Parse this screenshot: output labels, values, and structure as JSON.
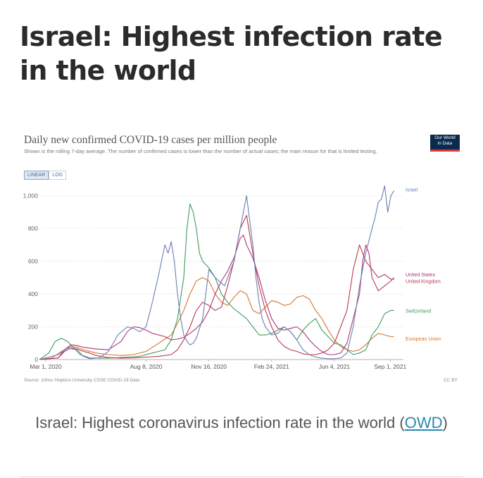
{
  "headline": "Israel: Highest infection rate in the world",
  "caption": {
    "text": "Israel: Highest coronavirus infection rate in the world (",
    "link": "OWD",
    "close": ")"
  },
  "logo": {
    "line1": "Our World",
    "line2": "in Data"
  },
  "toggle": {
    "linear": "LINEAR",
    "log": "LOG"
  },
  "colors": {
    "Israel": "#6a7fb5",
    "United States": "#b13577",
    "United Kingdom": "#b73a4c",
    "Switzerland": "#3f9b5f",
    "European Union": "#d4762f"
  },
  "chart_data": {
    "type": "line",
    "title": "Daily new confirmed COVID-19 cases per million people",
    "subtitle": "Shown is the rolling 7-day average. The number of confirmed cases is lower than the number of actual cases; the main reason for that is limited testing.",
    "source": "Source: Johns Hopkins University CSSE COVID-19 Data",
    "license": "CC BY",
    "x_ticks": [
      "Mar 1, 2020",
      "Aug 8, 2020",
      "Nov 16, 2020",
      "Feb 24, 2021",
      "Jun 4, 2021",
      "Sep 1, 2021"
    ],
    "x_tick_days": [
      0,
      160,
      260,
      360,
      460,
      549
    ],
    "y_ticks": [
      0,
      200,
      400,
      600,
      800,
      1000
    ],
    "y_tick_labels": [
      "0",
      "200",
      "400",
      "600",
      "800",
      "1,000"
    ],
    "xlim": [
      -10,
      570
    ],
    "ylim": [
      0,
      1050
    ],
    "x_unit": "days since Mar 1, 2020",
    "series": [
      {
        "name": "Israel",
        "label": "Israel",
        "x": [
          -10,
          20,
          35,
          50,
          60,
          70,
          85,
          100,
          115,
          130,
          140,
          150,
          160,
          170,
          180,
          190,
          195,
          200,
          205,
          210,
          215,
          220,
          225,
          230,
          235,
          240,
          250,
          260,
          270,
          285,
          300,
          310,
          315,
          320,
          325,
          330,
          335,
          340,
          345,
          350,
          360,
          370,
          380,
          390,
          400,
          410,
          420,
          430,
          440,
          450,
          460,
          470,
          480,
          490,
          500,
          510,
          520,
          525,
          530,
          535,
          540,
          545,
          550,
          555
        ],
        "y": [
          0,
          30,
          70,
          60,
          20,
          5,
          10,
          50,
          150,
          200,
          190,
          170,
          200,
          350,
          520,
          700,
          650,
          720,
          600,
          400,
          250,
          150,
          110,
          90,
          100,
          130,
          250,
          550,
          500,
          450,
          600,
          800,
          900,
          1000,
          850,
          700,
          500,
          350,
          250,
          200,
          150,
          160,
          200,
          170,
          120,
          60,
          30,
          15,
          8,
          5,
          5,
          10,
          40,
          200,
          450,
          650,
          800,
          870,
          960,
          980,
          1060,
          900,
          1000,
          1030
        ]
      },
      {
        "name": "United States",
        "label": "United States",
        "x": [
          -10,
          20,
          30,
          40,
          50,
          60,
          80,
          100,
          120,
          130,
          140,
          150,
          160,
          170,
          180,
          190,
          200,
          210,
          220,
          230,
          240,
          250,
          260,
          270,
          280,
          290,
          300,
          305,
          310,
          315,
          320,
          330,
          340,
          350,
          360,
          370,
          380,
          390,
          400,
          410,
          420,
          430,
          440,
          450,
          460,
          470,
          480,
          490,
          500,
          505,
          510,
          515,
          520,
          530,
          540,
          550,
          555
        ],
        "y": [
          0,
          10,
          60,
          90,
          85,
          75,
          65,
          60,
          110,
          170,
          200,
          195,
          180,
          160,
          150,
          140,
          120,
          125,
          135,
          160,
          190,
          230,
          300,
          400,
          480,
          540,
          620,
          680,
          740,
          760,
          700,
          620,
          500,
          360,
          250,
          190,
          180,
          190,
          200,
          170,
          120,
          80,
          50,
          30,
          30,
          40,
          100,
          250,
          400,
          600,
          700,
          650,
          500,
          420,
          450,
          480,
          500
        ]
      },
      {
        "name": "United Kingdom",
        "label": "United Kingdom",
        "x": [
          -10,
          20,
          30,
          40,
          50,
          60,
          70,
          80,
          100,
          120,
          140,
          160,
          180,
          200,
          210,
          220,
          230,
          240,
          250,
          260,
          270,
          280,
          290,
          300,
          310,
          320,
          330,
          340,
          350,
          360,
          370,
          380,
          390,
          400,
          410,
          420,
          430,
          440,
          450,
          460,
          470,
          480,
          490,
          500,
          510,
          520,
          530,
          540,
          550,
          555
        ],
        "y": [
          0,
          10,
          50,
          70,
          65,
          50,
          40,
          25,
          12,
          8,
          10,
          15,
          20,
          30,
          60,
          120,
          200,
          300,
          350,
          330,
          300,
          320,
          450,
          600,
          800,
          880,
          650,
          450,
          300,
          200,
          120,
          80,
          60,
          50,
          35,
          30,
          30,
          40,
          60,
          100,
          200,
          300,
          550,
          700,
          600,
          550,
          500,
          520,
          490,
          490
        ]
      },
      {
        "name": "Switzerland",
        "label": "Switzerland",
        "x": [
          -10,
          5,
          15,
          25,
          35,
          45,
          55,
          70,
          90,
          110,
          130,
          150,
          170,
          190,
          200,
          210,
          220,
          225,
          230,
          235,
          240,
          245,
          250,
          260,
          270,
          280,
          290,
          300,
          310,
          320,
          330,
          340,
          350,
          360,
          370,
          380,
          390,
          400,
          410,
          420,
          430,
          440,
          450,
          460,
          470,
          480,
          490,
          500,
          510,
          520,
          530,
          540,
          550,
          555
        ],
        "y": [
          0,
          40,
          110,
          130,
          110,
          70,
          30,
          10,
          8,
          10,
          15,
          20,
          40,
          60,
          120,
          250,
          500,
          800,
          950,
          900,
          800,
          650,
          600,
          560,
          500,
          400,
          350,
          310,
          280,
          250,
          200,
          150,
          150,
          160,
          180,
          200,
          170,
          120,
          180,
          220,
          250,
          180,
          140,
          100,
          90,
          60,
          30,
          40,
          60,
          150,
          200,
          280,
          300,
          300
        ]
      },
      {
        "name": "European Union",
        "label": "European Union",
        "x": [
          -10,
          10,
          25,
          40,
          50,
          60,
          80,
          100,
          120,
          140,
          160,
          180,
          200,
          210,
          220,
          230,
          240,
          250,
          260,
          270,
          280,
          290,
          300,
          310,
          320,
          330,
          340,
          350,
          360,
          370,
          380,
          390,
          400,
          410,
          420,
          430,
          440,
          450,
          460,
          470,
          480,
          490,
          500,
          510,
          520,
          530,
          540,
          550,
          555
        ],
        "y": [
          0,
          10,
          50,
          80,
          75,
          60,
          40,
          30,
          25,
          30,
          50,
          100,
          150,
          220,
          300,
          400,
          480,
          500,
          480,
          400,
          350,
          330,
          380,
          420,
          400,
          300,
          280,
          320,
          360,
          350,
          330,
          340,
          380,
          390,
          370,
          300,
          250,
          180,
          120,
          80,
          60,
          50,
          60,
          90,
          130,
          160,
          150,
          140,
          140
        ]
      }
    ],
    "end_labels": [
      "Israel",
      "United States",
      "United Kingdom",
      "Switzerland",
      "European Union"
    ]
  }
}
